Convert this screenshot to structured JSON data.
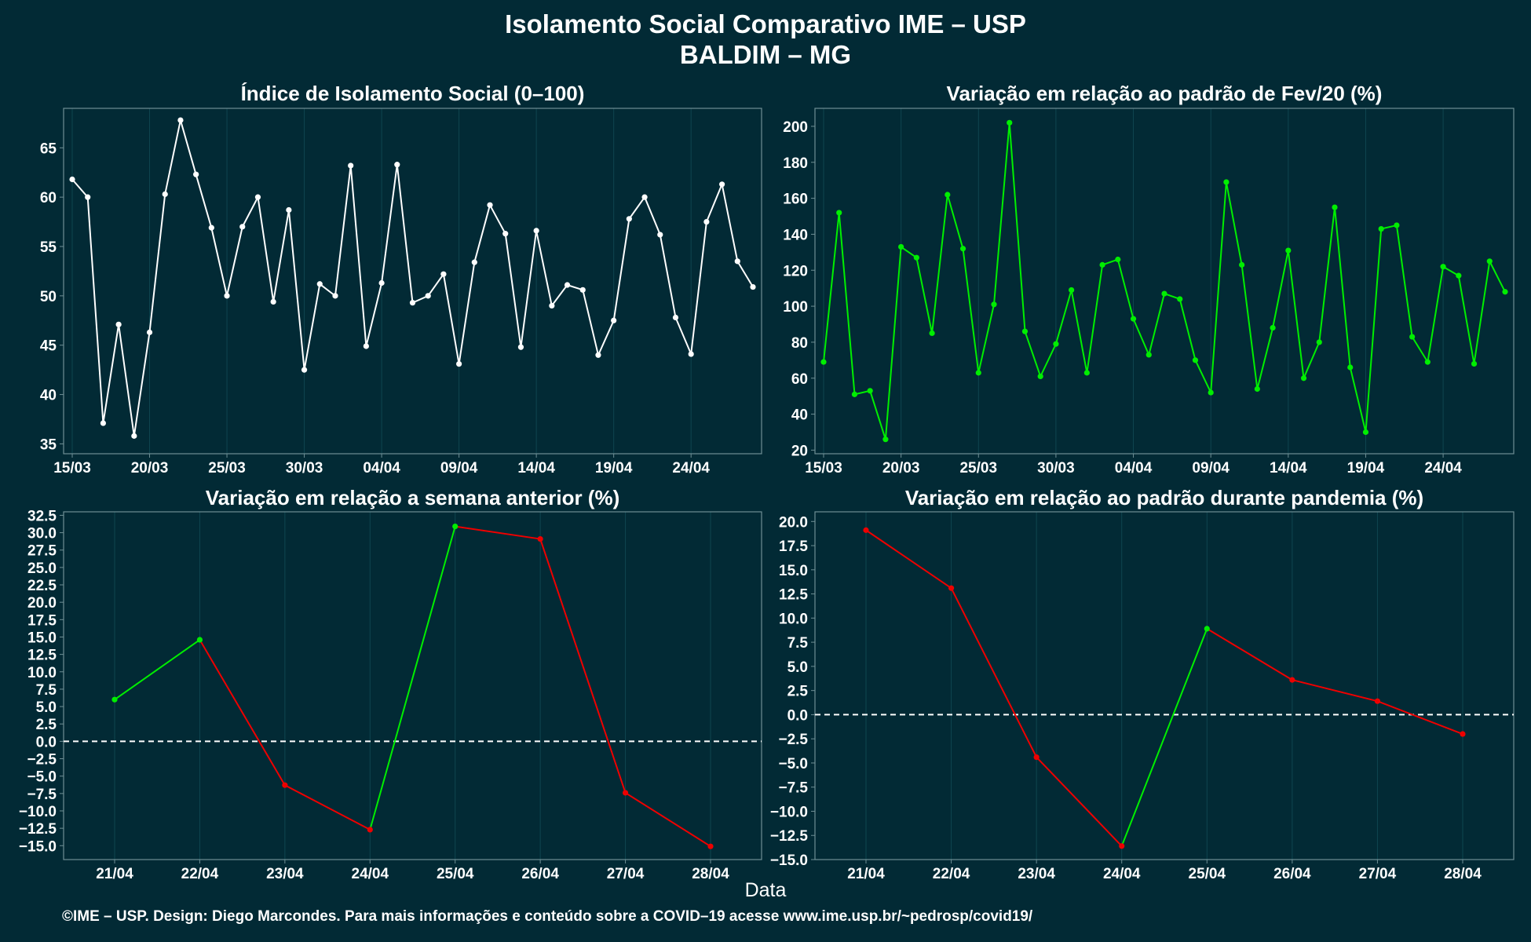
{
  "figure": {
    "title": "Isolamento Social Comparativo IME – USP",
    "subtitle": "BALDIM – MG",
    "xlabel": "Data",
    "footer": "©IME – USP. Design: Diego Marcondes. Para mais informações e conteúdo sobre a COVID–19 acesse www.ime.usp.br/~pedrosp/covid19/"
  },
  "colors": {
    "background": "#022a35",
    "grid": "#0f4550",
    "frame": "#6f8f95",
    "white_series": "#ffffff",
    "green": "#00ee00",
    "red": "#ee0000"
  },
  "chart_data": [
    {
      "type": "line",
      "title": "Índice de Isolamento Social (0–100)",
      "x_tick_labels": [
        "15/03",
        "20/03",
        "25/03",
        "30/03",
        "04/04",
        "09/04",
        "14/04",
        "19/04",
        "24/04"
      ],
      "x_tick_index": [
        0,
        5,
        10,
        15,
        20,
        25,
        30,
        35,
        40
      ],
      "ylim": [
        34,
        69
      ],
      "y_ticks": [
        35,
        40,
        45,
        50,
        55,
        60,
        65
      ],
      "color": "#ffffff",
      "series": [
        {
          "values": [
            61.8,
            60.0,
            37.1,
            47.1,
            35.8,
            46.3,
            60.3,
            67.8,
            62.3,
            56.9,
            50.0,
            57.0,
            60.0,
            49.4,
            58.7,
            42.5,
            51.2,
            50.0,
            63.2,
            44.9,
            51.3,
            63.3,
            49.3,
            50.0,
            52.2,
            43.1,
            53.4,
            59.2,
            56.3,
            44.8,
            56.6,
            49.0,
            51.1,
            50.6,
            44.0,
            47.5,
            57.8,
            60.0,
            56.2,
            47.8,
            44.1,
            57.5,
            61.3,
            53.5,
            50.9
          ]
        }
      ]
    },
    {
      "type": "line",
      "title": "Variação em relação ao padrão de Fev/20 (%)",
      "x_tick_labels": [
        "15/03",
        "20/03",
        "25/03",
        "30/03",
        "04/04",
        "09/04",
        "14/04",
        "19/04",
        "24/04"
      ],
      "x_tick_index": [
        0,
        5,
        10,
        15,
        20,
        25,
        30,
        35,
        40
      ],
      "ylim": [
        18,
        210
      ],
      "y_ticks": [
        20,
        40,
        60,
        80,
        100,
        120,
        140,
        160,
        180,
        200
      ],
      "color": "#00ee00",
      "series": [
        {
          "values": [
            69,
            152,
            51,
            53,
            26,
            133,
            127,
            85,
            162,
            132,
            63,
            101,
            202,
            86,
            61,
            79,
            109,
            63,
            123,
            126,
            93,
            73,
            107,
            104,
            70,
            52,
            169,
            123,
            54,
            88,
            131,
            60,
            80,
            155,
            66,
            30,
            143,
            145,
            83,
            69,
            122,
            117,
            68,
            125,
            108
          ]
        }
      ]
    },
    {
      "type": "line",
      "title": "Variação em relação a semana anterior (%)",
      "categories": [
        "21/04",
        "22/04",
        "23/04",
        "24/04",
        "25/04",
        "26/04",
        "27/04",
        "28/04"
      ],
      "ylim": [
        -17,
        33
      ],
      "y_ticks": [
        -15,
        -12.5,
        -10,
        -7.5,
        -5,
        -2.5,
        0,
        2.5,
        5,
        7.5,
        10,
        12.5,
        15,
        17.5,
        20,
        22.5,
        25,
        27.5,
        30,
        32.5
      ],
      "zero_line": true,
      "series": [
        {
          "values": [
            6.0,
            14.6,
            -6.3,
            -12.7,
            30.9,
            29.1,
            -7.4,
            -15.1
          ]
        }
      ]
    },
    {
      "type": "line",
      "title": "Variação em relação ao padrão durante pandemia (%)",
      "categories": [
        "21/04",
        "22/04",
        "23/04",
        "24/04",
        "25/04",
        "26/04",
        "27/04",
        "28/04"
      ],
      "ylim": [
        -15,
        21
      ],
      "y_ticks": [
        -15,
        -12.5,
        -10,
        -7.5,
        -5,
        -2.5,
        0,
        2.5,
        5,
        7.5,
        10,
        12.5,
        15,
        17.5,
        20
      ],
      "zero_line": true,
      "series": [
        {
          "values": [
            19.1,
            13.1,
            -4.4,
            -13.6,
            8.9,
            3.6,
            1.4,
            -2.0
          ]
        }
      ]
    }
  ]
}
